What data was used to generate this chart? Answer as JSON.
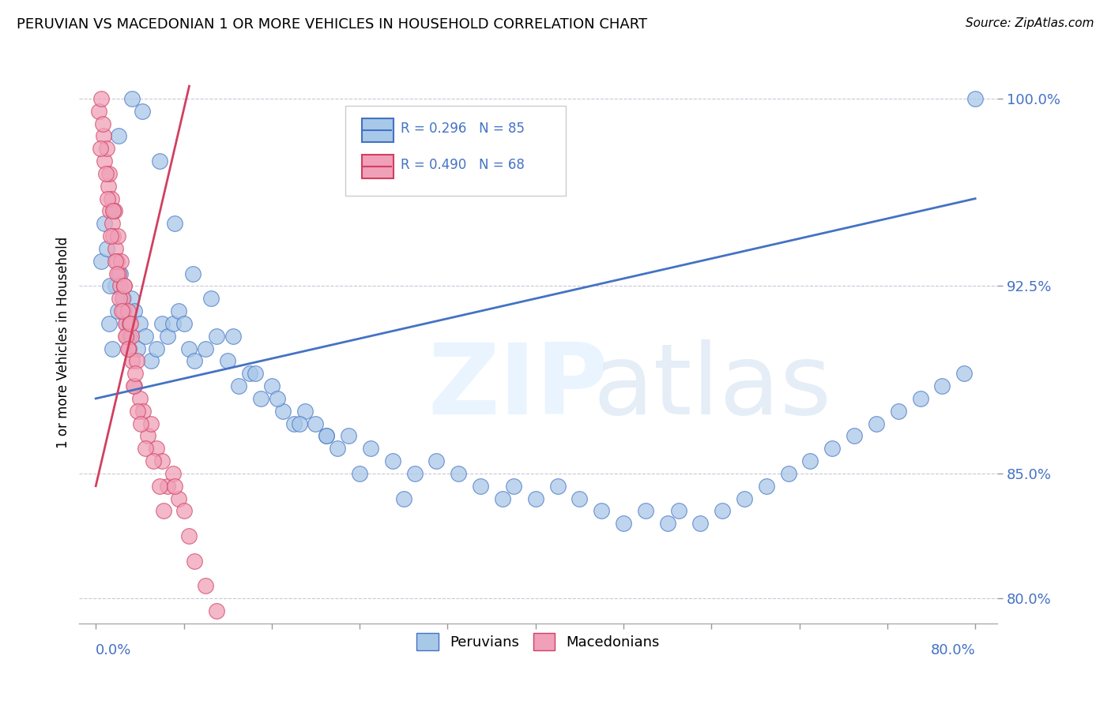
{
  "title": "PERUVIAN VS MACEDONIAN 1 OR MORE VEHICLES IN HOUSEHOLD CORRELATION CHART",
  "source": "Source: ZipAtlas.com",
  "ylabel": "1 or more Vehicles in Household",
  "y_ticks": [
    80.0,
    85.0,
    92.5,
    100.0
  ],
  "y_tick_labels": [
    "80.0%",
    "85.0%",
    "92.5%",
    "100.0%"
  ],
  "x_min": 0.0,
  "x_max": 80.0,
  "y_min": 79.0,
  "y_max": 101.5,
  "r_blue": 0.296,
  "n_blue": 85,
  "r_pink": 0.49,
  "n_pink": 68,
  "legend_blue": "Peruvians",
  "legend_pink": "Macedonians",
  "blue_color": "#a8c8e8",
  "pink_color": "#f0a0b8",
  "trend_blue_color": "#4472c4",
  "trend_pink_color": "#d04060",
  "label_color": "#4472c4",
  "grid_color": "#c8c8d8",
  "blue_points_x": [
    0.5,
    0.8,
    1.0,
    1.2,
    1.5,
    1.8,
    2.0,
    2.2,
    2.5,
    2.8,
    3.0,
    3.2,
    3.5,
    3.8,
    4.0,
    4.5,
    5.0,
    5.5,
    6.0,
    6.5,
    7.0,
    7.5,
    8.0,
    8.5,
    9.0,
    10.0,
    11.0,
    12.0,
    13.0,
    14.0,
    15.0,
    16.0,
    17.0,
    18.0,
    19.0,
    20.0,
    21.0,
    22.0,
    23.0,
    25.0,
    27.0,
    29.0,
    31.0,
    33.0,
    35.0,
    37.0,
    38.0,
    40.0,
    42.0,
    44.0,
    46.0,
    48.0,
    50.0,
    52.0,
    53.0,
    55.0,
    57.0,
    59.0,
    61.0,
    63.0,
    65.0,
    67.0,
    69.0,
    71.0,
    73.0,
    75.0,
    77.0,
    79.0,
    1.3,
    1.6,
    2.1,
    3.3,
    4.2,
    5.8,
    7.2,
    8.8,
    10.5,
    12.5,
    14.5,
    16.5,
    18.5,
    21.0,
    24.0,
    28.0,
    80.0
  ],
  "blue_points_y": [
    93.5,
    95.0,
    94.0,
    91.0,
    90.0,
    92.5,
    91.5,
    93.0,
    92.0,
    91.0,
    90.5,
    92.0,
    91.5,
    90.0,
    91.0,
    90.5,
    89.5,
    90.0,
    91.0,
    90.5,
    91.0,
    91.5,
    91.0,
    90.0,
    89.5,
    90.0,
    90.5,
    89.5,
    88.5,
    89.0,
    88.0,
    88.5,
    87.5,
    87.0,
    87.5,
    87.0,
    86.5,
    86.0,
    86.5,
    86.0,
    85.5,
    85.0,
    85.5,
    85.0,
    84.5,
    84.0,
    84.5,
    84.0,
    84.5,
    84.0,
    83.5,
    83.0,
    83.5,
    83.0,
    83.5,
    83.0,
    83.5,
    84.0,
    84.5,
    85.0,
    85.5,
    86.0,
    86.5,
    87.0,
    87.5,
    88.0,
    88.5,
    89.0,
    92.5,
    95.5,
    98.5,
    100.0,
    99.5,
    97.5,
    95.0,
    93.0,
    92.0,
    90.5,
    89.0,
    88.0,
    87.0,
    86.5,
    85.0,
    84.0,
    100.0
  ],
  "pink_points_x": [
    0.3,
    0.5,
    0.7,
    0.8,
    1.0,
    1.1,
    1.2,
    1.3,
    1.4,
    1.5,
    1.6,
    1.7,
    1.8,
    1.9,
    2.0,
    2.1,
    2.2,
    2.3,
    2.4,
    2.5,
    2.6,
    2.7,
    2.8,
    2.9,
    3.0,
    3.1,
    3.2,
    3.3,
    3.5,
    3.7,
    4.0,
    4.3,
    4.7,
    5.0,
    5.5,
    6.0,
    6.5,
    7.0,
    7.5,
    8.0,
    0.4,
    0.6,
    0.9,
    1.05,
    1.35,
    1.55,
    1.75,
    1.95,
    2.15,
    2.35,
    2.55,
    2.75,
    2.95,
    3.15,
    3.4,
    3.6,
    3.8,
    4.1,
    4.5,
    5.2,
    5.8,
    6.2,
    7.2,
    8.5,
    9.0,
    10.0,
    11.0,
    12.0
  ],
  "pink_points_y": [
    99.5,
    100.0,
    98.5,
    97.5,
    98.0,
    96.5,
    97.0,
    95.5,
    96.0,
    95.0,
    94.5,
    95.5,
    94.0,
    93.5,
    94.5,
    93.0,
    92.5,
    93.5,
    92.0,
    91.5,
    92.5,
    91.0,
    90.5,
    91.5,
    90.0,
    91.0,
    90.5,
    89.5,
    88.5,
    89.5,
    88.0,
    87.5,
    86.5,
    87.0,
    86.0,
    85.5,
    84.5,
    85.0,
    84.0,
    83.5,
    98.0,
    99.0,
    97.0,
    96.0,
    94.5,
    95.5,
    93.5,
    93.0,
    92.0,
    91.5,
    92.5,
    90.5,
    90.0,
    91.0,
    88.5,
    89.0,
    87.5,
    87.0,
    86.0,
    85.5,
    84.5,
    83.5,
    84.5,
    82.5,
    81.5,
    80.5,
    79.5,
    78.5
  ]
}
